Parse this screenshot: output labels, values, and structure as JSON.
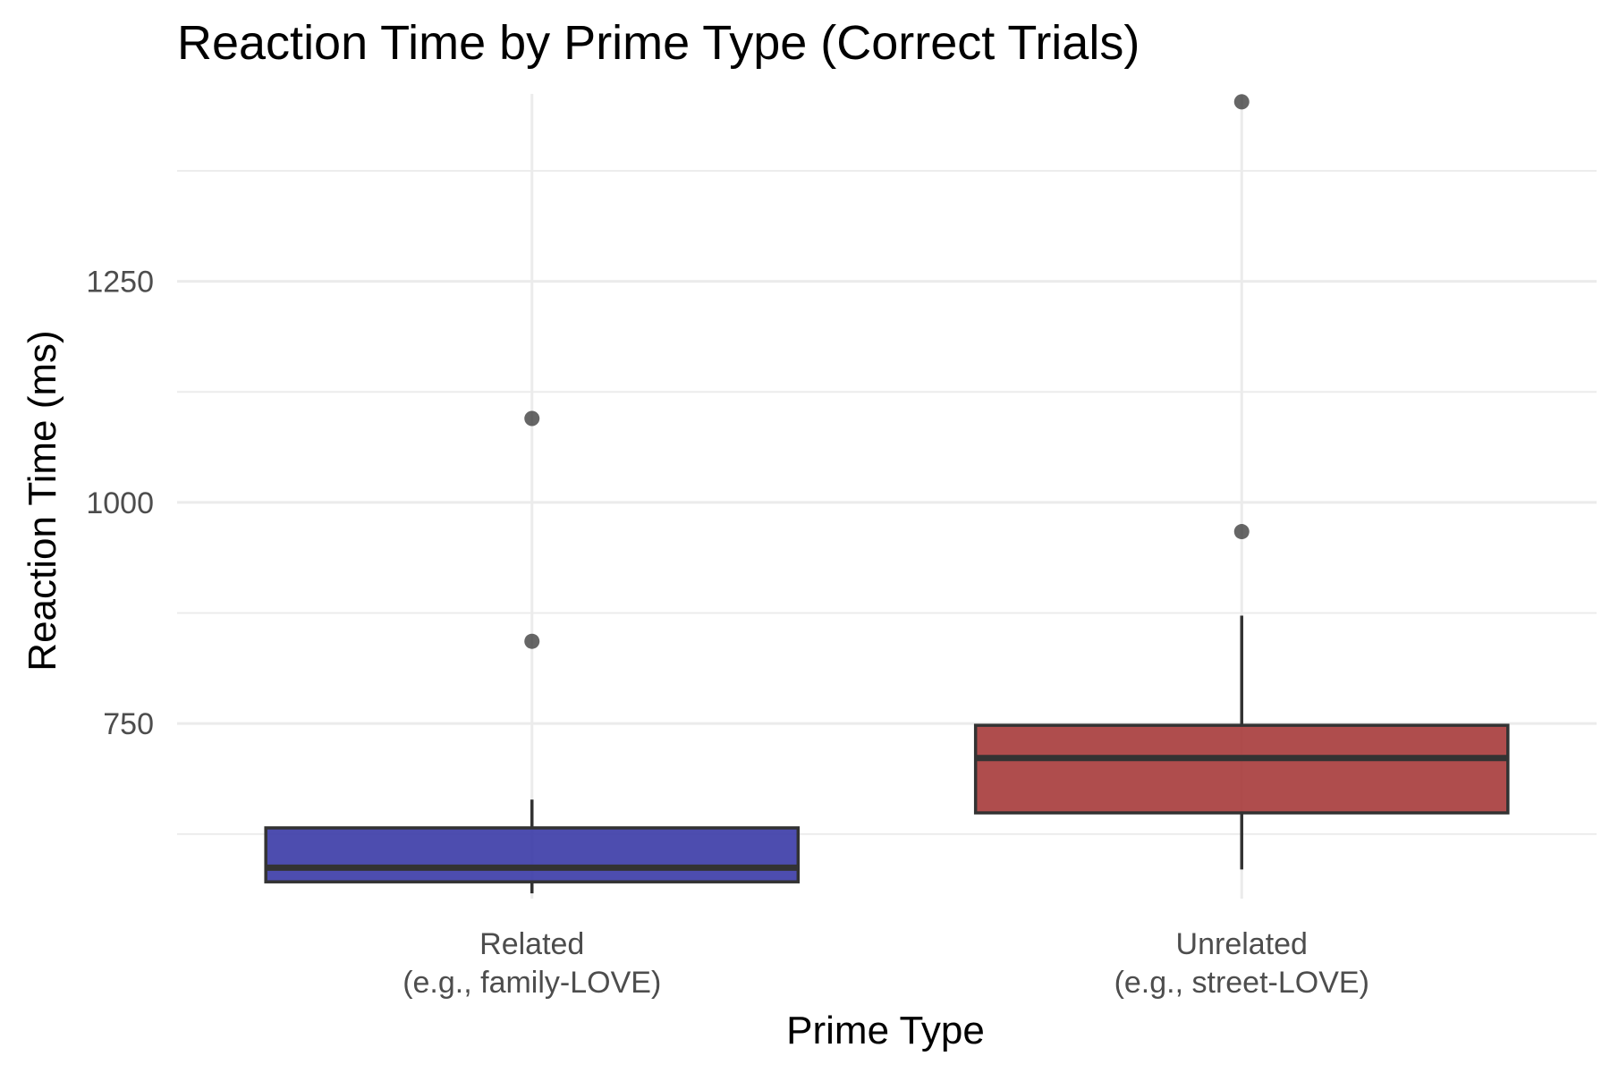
{
  "chart_data": {
    "type": "boxplot",
    "title": "Reaction Time by Prime Type (Correct Trials)",
    "xlabel": "Prime Type",
    "ylabel": "Reaction Time (ms)",
    "ylim": [
      552,
      1462
    ],
    "y_ticks": [
      750,
      1000,
      1250
    ],
    "y_minor_ticks": [
      625,
      875,
      1125,
      1375
    ],
    "grid": true,
    "legend": "none",
    "categories": [
      {
        "line1": "Related",
        "line2": "(e.g., family-LOVE)"
      },
      {
        "line1": "Unrelated",
        "line2": "(e.g., street-LOVE)"
      }
    ],
    "boxes": [
      {
        "category": "Related",
        "color": "#3A3AA6",
        "whisker_low": 558,
        "q1": 571,
        "median": 587,
        "q3": 632,
        "whisker_high": 664,
        "outliers": [
          843,
          1095
        ]
      },
      {
        "category": "Unrelated",
        "color": "#A63A3A",
        "whisker_low": 585,
        "q1": 649,
        "median": 711,
        "q3": 748,
        "whisker_high": 872,
        "outliers": [
          967,
          1453
        ]
      }
    ]
  }
}
